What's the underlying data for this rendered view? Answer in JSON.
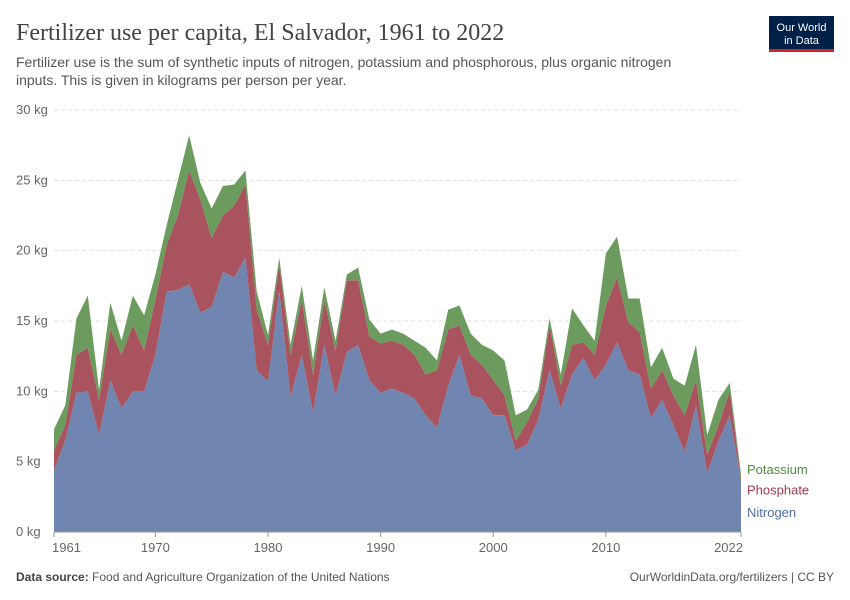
{
  "chart_data": {
    "type": "area",
    "title": "Fertilizer use per capita, El Salvador, 1961 to 2022",
    "subtitle": [
      "Fertilizer use is the sum of synthetic inputs of nitrogen, potassium and phosphorous, plus organic nitrogen",
      "inputs. This is given in kilograms per person per year."
    ],
    "logo": [
      "Our World",
      "in Data"
    ],
    "source_label": "Data source:",
    "source": "Food and Agriculture Organization of the United Nations",
    "credit": "OurWorldinData.org/fertilizers | CC BY",
    "x": [
      1961,
      1962,
      1963,
      1964,
      1965,
      1966,
      1967,
      1968,
      1969,
      1970,
      1971,
      1972,
      1973,
      1974,
      1975,
      1976,
      1977,
      1978,
      1979,
      1980,
      1981,
      1982,
      1983,
      1984,
      1985,
      1986,
      1987,
      1988,
      1989,
      1990,
      1991,
      1992,
      1993,
      1994,
      1995,
      1996,
      1997,
      1998,
      1999,
      2000,
      2001,
      2002,
      2003,
      2004,
      2005,
      2006,
      2007,
      2008,
      2009,
      2010,
      2011,
      2012,
      2013,
      2014,
      2015,
      2016,
      2017,
      2018,
      2019,
      2020,
      2021,
      2022
    ],
    "xlim": [
      1961,
      2022
    ],
    "xticks": [
      1961,
      1970,
      1980,
      1990,
      2000,
      2010,
      2022
    ],
    "ylim": [
      0,
      30
    ],
    "yticks": [
      {
        "value": 0,
        "label": "0 kg"
      },
      {
        "value": 5,
        "label": "5 kg"
      },
      {
        "value": 10,
        "label": "10 kg"
      },
      {
        "value": 15,
        "label": "15 kg"
      },
      {
        "value": 20,
        "label": "20 kg"
      },
      {
        "value": 25,
        "label": "25 kg"
      },
      {
        "value": 30,
        "label": "30 kg"
      }
    ],
    "grid": true,
    "stacked": true,
    "series": [
      {
        "name": "Nitrogen",
        "color": "#7086b0",
        "label_color": "#4f6ea3",
        "values": [
          4.4,
          6.5,
          9.9,
          10.0,
          6.9,
          10.8,
          8.8,
          10.0,
          10.0,
          12.6,
          17.1,
          17.2,
          17.6,
          15.6,
          16.0,
          18.5,
          18.1,
          19.5,
          11.5,
          10.7,
          17.2,
          9.6,
          12.6,
          8.5,
          13.3,
          9.7,
          12.8,
          13.3,
          10.8,
          9.9,
          10.2,
          9.9,
          9.5,
          8.3,
          7.4,
          10.4,
          12.6,
          9.7,
          9.5,
          8.3,
          8.3,
          5.8,
          6.2,
          8.0,
          11.5,
          8.8,
          11.2,
          12.4,
          10.8,
          11.9,
          13.5,
          11.5,
          11.2,
          8.1,
          9.4,
          7.6,
          5.7,
          9.0,
          4.2,
          6.5,
          8.3,
          3.6
        ]
      },
      {
        "name": "Phosphate",
        "color": "#a9535f",
        "label_color": "#a03a4c",
        "values": [
          1.4,
          1.1,
          2.7,
          3.1,
          2.5,
          3.6,
          3.8,
          4.7,
          2.9,
          3.9,
          3.3,
          5.3,
          8.1,
          8.0,
          4.9,
          4.0,
          5.1,
          5.2,
          4.3,
          2.6,
          1.8,
          3.0,
          3.9,
          2.7,
          3.2,
          3.2,
          5.1,
          4.6,
          3.1,
          3.5,
          3.4,
          3.4,
          3.1,
          2.9,
          4.1,
          4.0,
          2.1,
          2.9,
          2.4,
          2.5,
          1.4,
          0.7,
          1.6,
          1.5,
          3.2,
          1.6,
          2.1,
          1.1,
          1.8,
          4.2,
          4.6,
          3.4,
          3.0,
          2.1,
          2.1,
          2.1,
          2.6,
          1.8,
          1.3,
          1.1,
          1.7,
          0.2
        ]
      },
      {
        "name": "Potassium",
        "color": "#6b9b5d",
        "label_color": "#4e8a3f",
        "values": [
          1.5,
          1.4,
          2.6,
          3.7,
          0.7,
          1.9,
          1.0,
          2.1,
          2.5,
          1.8,
          1.4,
          2.5,
          2.5,
          1.2,
          2.1,
          2.1,
          1.5,
          1.0,
          1.3,
          0.7,
          0.5,
          0.7,
          1.0,
          1.0,
          0.9,
          0.7,
          0.4,
          0.9,
          1.2,
          0.7,
          0.8,
          0.8,
          1.0,
          1.9,
          0.7,
          1.4,
          1.4,
          1.5,
          1.4,
          2.1,
          2.5,
          1.8,
          0.9,
          0.6,
          0.5,
          0.8,
          2.6,
          1.2,
          1.0,
          3.7,
          2.9,
          1.7,
          2.4,
          1.5,
          1.6,
          1.2,
          2.1,
          2.5,
          1.4,
          1.8,
          0.6,
          0.3
        ]
      }
    ]
  }
}
